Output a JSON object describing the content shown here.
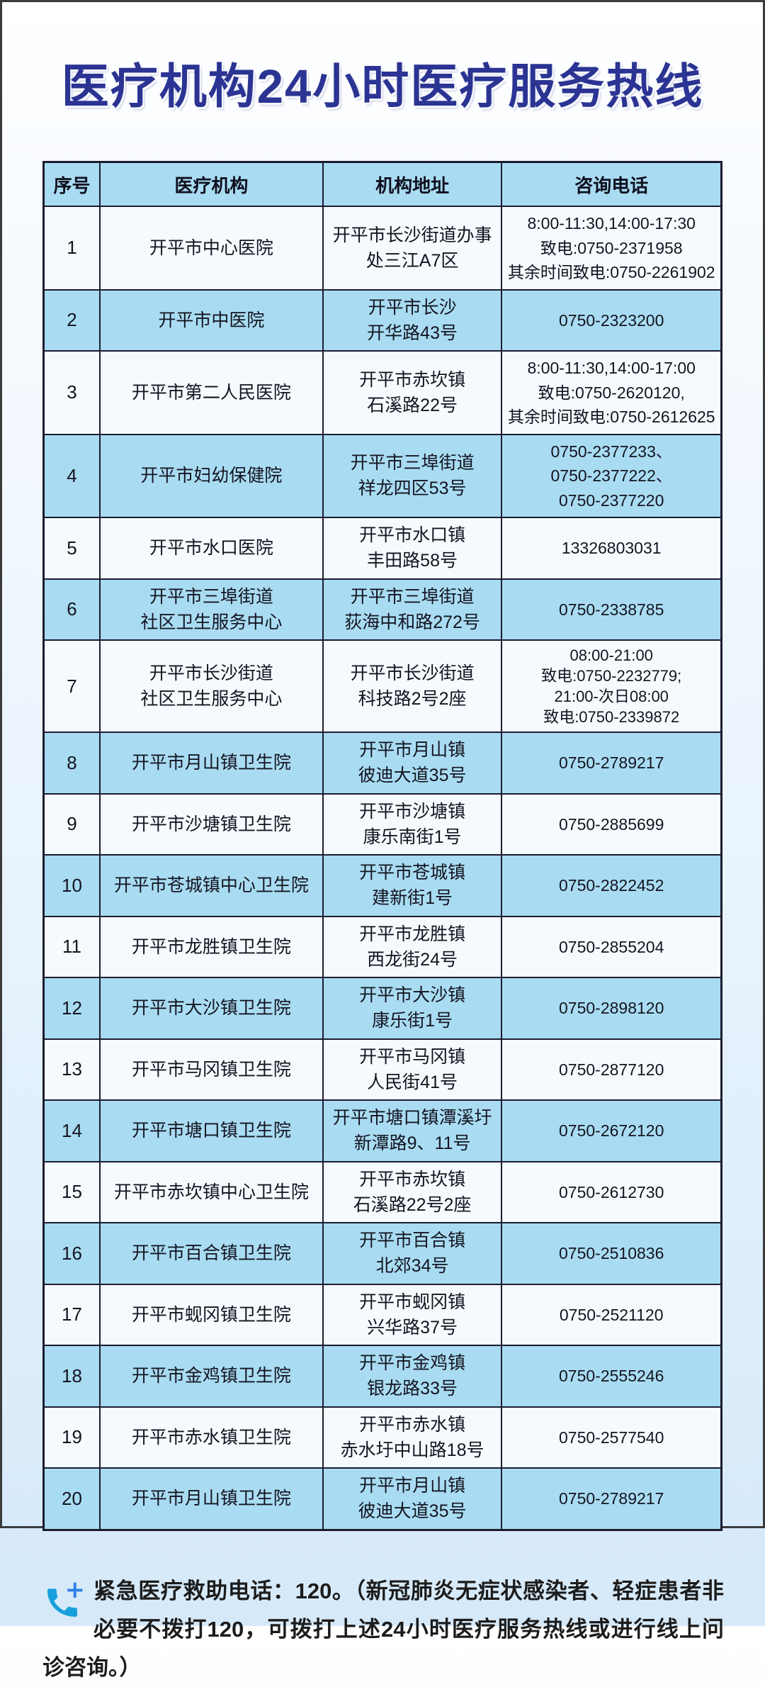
{
  "title": "医疗机构24小时医疗服务热线",
  "accent_colors": {
    "title_blue": "#2b3493",
    "row_blue": "#a9dcf2",
    "row_white": "#f5fafe",
    "table_border": "#1c1c30",
    "phone_icon_blue": "#18a0dc",
    "plus_blue": "#2f80e8"
  },
  "table": {
    "headers": [
      "序号",
      "医疗机构",
      "机构地址",
      "咨询电话"
    ],
    "rows": [
      {
        "no": "1",
        "name": "开平市中心医院",
        "addr": "开平市长沙街道办事\n处三江A7区",
        "phone": "8:00-11:30,14:00-17:30\n致电:0750-2371958\n其余时间致电:0750-2261902"
      },
      {
        "no": "2",
        "name": "开平市中医院",
        "addr": "开平市长沙\n开华路43号",
        "phone": "0750-2323200"
      },
      {
        "no": "3",
        "name": "开平市第二人民医院",
        "addr": "开平市赤坎镇\n石溪路22号",
        "phone": "8:00-11:30,14:00-17:00\n致电:0750-2620120,\n其余时间致电:0750-2612625"
      },
      {
        "no": "4",
        "name": "开平市妇幼保健院",
        "addr": "开平市三埠街道\n祥龙四区53号",
        "phone": "0750-2377233、\n0750-2377222、\n0750-2377220"
      },
      {
        "no": "5",
        "name": "开平市水口医院",
        "addr": "开平市水口镇\n丰田路58号",
        "phone": "13326803031"
      },
      {
        "no": "6",
        "name": "开平市三埠街道\n社区卫生服务中心",
        "addr": "开平市三埠街道\n荻海中和路272号",
        "phone": "0750-2338785"
      },
      {
        "no": "7",
        "name": "开平市长沙街道\n社区卫生服务中心",
        "addr": "开平市长沙街道\n科技路2号2座",
        "phone": "08:00-21:00\n致电:0750-2232779;\n21:00-次日08:00\n致电:0750-2339872",
        "dense": true
      },
      {
        "no": "8",
        "name": "开平市月山镇卫生院",
        "addr": "开平市月山镇\n彼迪大道35号",
        "phone": "0750-2789217"
      },
      {
        "no": "9",
        "name": "开平市沙塘镇卫生院",
        "addr": "开平市沙塘镇\n康乐南街1号",
        "phone": "0750-2885699"
      },
      {
        "no": "10",
        "name": "开平市苍城镇中心卫生院",
        "addr": "开平市苍城镇\n建新街1号",
        "phone": "0750-2822452"
      },
      {
        "no": "11",
        "name": "开平市龙胜镇卫生院",
        "addr": "开平市龙胜镇\n西龙街24号",
        "phone": "0750-2855204"
      },
      {
        "no": "12",
        "name": "开平市大沙镇卫生院",
        "addr": "开平市大沙镇\n康乐街1号",
        "phone": "0750-2898120"
      },
      {
        "no": "13",
        "name": "开平市马冈镇卫生院",
        "addr": "开平市马冈镇\n人民街41号",
        "phone": "0750-2877120"
      },
      {
        "no": "14",
        "name": "开平市塘口镇卫生院",
        "addr": "开平市塘口镇潭溪圩\n新潭路9、11号",
        "phone": "0750-2672120"
      },
      {
        "no": "15",
        "name": "开平市赤坎镇中心卫生院",
        "addr": "开平市赤坎镇\n石溪路22号2座",
        "phone": "0750-2612730"
      },
      {
        "no": "16",
        "name": "开平市百合镇卫生院",
        "addr": "开平市百合镇\n北郊34号",
        "phone": "0750-2510836"
      },
      {
        "no": "17",
        "name": "开平市蚬冈镇卫生院",
        "addr": "开平市蚬冈镇\n兴华路37号",
        "phone": "0750-2521120"
      },
      {
        "no": "18",
        "name": "开平市金鸡镇卫生院",
        "addr": "开平市金鸡镇\n银龙路33号",
        "phone": "0750-2555246"
      },
      {
        "no": "19",
        "name": "开平市赤水镇卫生院",
        "addr": "开平市赤水镇\n赤水圩中山路18号",
        "phone": "0750-2577540"
      },
      {
        "no": "20",
        "name": "开平市月山镇卫生院",
        "addr": "开平市月山镇\n彼迪大道35号",
        "phone": "0750-2789217"
      }
    ]
  },
  "footer": {
    "icon": "phone-plus-icon",
    "lead": "紧急医疗救助电话：120。",
    "rest": "（新冠肺炎无症状感染者、轻症患者非必要不拨打120，可拨打上述24小时医疗服务热线或进行线上问诊咨询。）"
  }
}
